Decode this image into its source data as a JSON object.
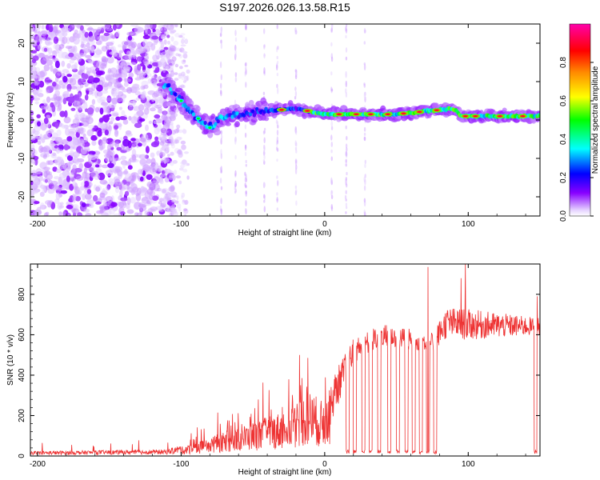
{
  "title": "S197.2026.026.13.58.R15",
  "chart_data": [
    {
      "type": "heatmap",
      "title": "",
      "xlabel": "Height of straight line (km)",
      "ylabel": "Frequency (Hz)",
      "xlim": [
        -205,
        150
      ],
      "ylim": [
        -25,
        25
      ],
      "x_ticks": [
        "-200",
        "-100",
        "0",
        "100"
      ],
      "y_ticks": [
        "-20",
        "-10",
        "0",
        "10",
        "20"
      ],
      "x_tick_values": [
        -200,
        -100,
        0,
        100
      ],
      "y_tick_values": [
        -20,
        -10,
        0,
        10,
        20
      ],
      "colorbar": {
        "label": "Normalized spectral amplitude",
        "range": [
          0,
          1
        ],
        "ticks": [
          "0.0",
          "0.2",
          "0.4",
          "0.6",
          "0.8"
        ],
        "tick_values": [
          0.0,
          0.2,
          0.4,
          0.6,
          0.8
        ]
      },
      "ridge_frequency_hz": [
        {
          "x": -110,
          "f": 9
        },
        {
          "x": -100,
          "f": 5
        },
        {
          "x": -90,
          "f": 1
        },
        {
          "x": -80,
          "f": -2
        },
        {
          "x": -70,
          "f": 1
        },
        {
          "x": -50,
          "f": 2
        },
        {
          "x": -20,
          "f": 3
        },
        {
          "x": 0,
          "f": 1.5
        },
        {
          "x": 50,
          "f": 1.5
        },
        {
          "x": 90,
          "f": 3
        },
        {
          "x": 95,
          "f": 1
        },
        {
          "x": 150,
          "f": 1
        }
      ]
    },
    {
      "type": "line",
      "title": "",
      "xlabel": "Height of straight line (km)",
      "ylabel": "SNR (10 * v/v)",
      "xlim": [
        -205,
        150
      ],
      "ylim": [
        0,
        950
      ],
      "x_ticks": [
        "-200",
        "-100",
        "0",
        "100"
      ],
      "y_ticks": [
        "0",
        "200",
        "400",
        "600",
        "800"
      ],
      "x_tick_values": [
        -200,
        -100,
        0,
        100
      ],
      "y_tick_values": [
        0,
        200,
        400,
        600,
        800
      ],
      "series": [
        {
          "name": "SNR",
          "color": "#ee3333",
          "envelope": [
            {
              "x": -205,
              "mean": 15,
              "amp": 15
            },
            {
              "x": -110,
              "mean": 20,
              "amp": 20
            },
            {
              "x": -90,
              "mean": 50,
              "amp": 50
            },
            {
              "x": -60,
              "mean": 110,
              "amp": 100
            },
            {
              "x": -30,
              "mean": 170,
              "amp": 150
            },
            {
              "x": -10,
              "mean": 250,
              "amp": 220
            },
            {
              "x": 0,
              "mean": 200,
              "amp": 180
            },
            {
              "x": 20,
              "mean": 520,
              "amp": 90
            },
            {
              "x": 40,
              "mean": 600,
              "amp": 80
            },
            {
              "x": 75,
              "mean": 560,
              "amp": 70
            },
            {
              "x": 85,
              "mean": 660,
              "amp": 110
            },
            {
              "x": 100,
              "mean": 650,
              "amp": 110
            },
            {
              "x": 150,
              "mean": 640,
              "amp": 60
            }
          ],
          "dropouts_x": [
            16,
            21,
            27,
            32,
            38,
            45,
            51,
            57,
            62,
            67,
            72,
            77,
            147
          ],
          "peaks": [
            {
              "x": 72,
              "y": 935
            },
            {
              "x": 98,
              "y": 950
            },
            {
              "x": 95,
              "y": 880
            },
            {
              "x": 148,
              "y": 790
            }
          ]
        }
      ]
    }
  ]
}
